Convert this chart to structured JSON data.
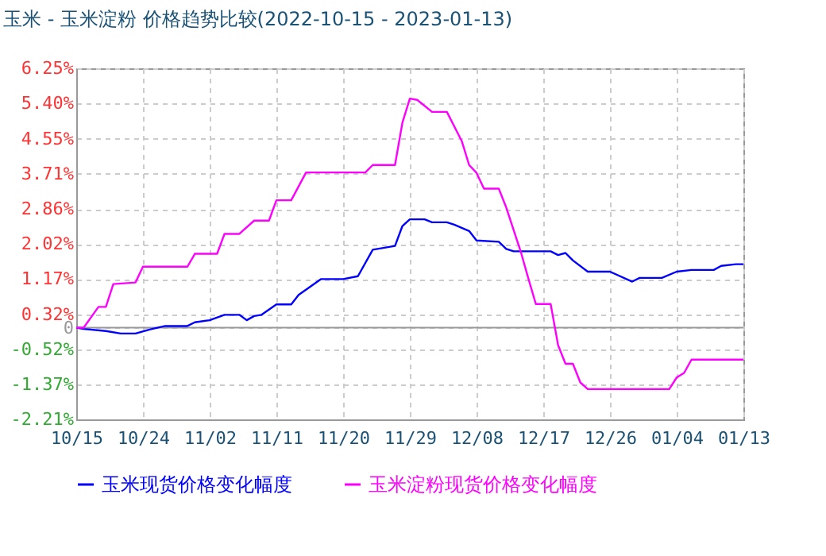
{
  "chart_data": {
    "type": "line",
    "title": "玉米 - 玉米淀粉 价格趋势比较(2022-10-15 - 2023-01-13)",
    "xlim": [
      "2022-10-15",
      "2023-01-13"
    ],
    "xticks": [
      {
        "value": "2022-10-15",
        "label": "10/15"
      },
      {
        "value": "2022-10-24",
        "label": "10/24"
      },
      {
        "value": "2022-11-02",
        "label": "11/02"
      },
      {
        "value": "2022-11-11",
        "label": "11/11"
      },
      {
        "value": "2022-11-20",
        "label": "11/20"
      },
      {
        "value": "2022-11-29",
        "label": "11/29"
      },
      {
        "value": "2022-12-08",
        "label": "12/08"
      },
      {
        "value": "2022-12-17",
        "label": "12/17"
      },
      {
        "value": "2022-12-26",
        "label": "12/26"
      },
      {
        "value": "2023-01-04",
        "label": "01/04"
      },
      {
        "value": "2023-01-13",
        "label": "01/13"
      }
    ],
    "ylim": [
      -2.21,
      6.25
    ],
    "yticks": [
      {
        "value": 6.25,
        "label": "6.25%"
      },
      {
        "value": 5.4,
        "label": "5.40%"
      },
      {
        "value": 4.55,
        "label": "4.55%"
      },
      {
        "value": 3.71,
        "label": "3.71%"
      },
      {
        "value": 2.86,
        "label": "2.86%"
      },
      {
        "value": 2.02,
        "label": "2.02%"
      },
      {
        "value": 1.17,
        "label": "1.17%"
      },
      {
        "value": 0.32,
        "label": "0.32%"
      },
      0,
      {
        "value": -0.52,
        "label": "-0.52%"
      },
      {
        "value": -1.37,
        "label": "-1.37%"
      },
      {
        "value": -2.21,
        "label": "-2.21%"
      }
    ],
    "grid": true,
    "legend": "bottom",
    "marker": "none",
    "line_style": "solid",
    "ref_lines": [
      {
        "axis": "y",
        "value": 0,
        "color": "#999999"
      }
    ],
    "series": [
      {
        "name": "玉米现货价格变化幅度",
        "color": "#0000ff",
        "x": [
          "2022-10-15",
          "2022-10-16",
          "2022-10-19",
          "2022-10-21",
          "2022-10-23",
          "2022-10-25",
          "2022-10-27",
          "2022-10-30",
          "2022-10-31",
          "2022-11-02",
          "2022-11-04",
          "2022-11-06",
          "2022-11-07",
          "2022-11-08",
          "2022-11-09",
          "2022-11-11",
          "2022-11-13",
          "2022-11-14",
          "2022-11-17",
          "2022-11-20",
          "2022-11-22",
          "2022-11-24",
          "2022-11-27",
          "2022-11-28",
          "2022-11-29",
          "2022-12-01",
          "2022-12-02",
          "2022-12-04",
          "2022-12-05",
          "2022-12-07",
          "2022-12-08",
          "2022-12-11",
          "2022-12-12",
          "2022-12-13",
          "2022-12-18",
          "2022-12-19",
          "2022-12-20",
          "2022-12-21",
          "2022-12-23",
          "2022-12-26",
          "2022-12-29",
          "2022-12-30",
          "2023-01-02",
          "2023-01-04",
          "2023-01-06",
          "2023-01-09",
          "2023-01-10",
          "2023-01-12",
          "2023-01-13"
        ],
        "values": [
          0,
          -0.03,
          -0.08,
          -0.14,
          -0.14,
          -0.04,
          0.04,
          0.04,
          0.13,
          0.18,
          0.31,
          0.31,
          0.18,
          0.28,
          0.31,
          0.56,
          0.56,
          0.79,
          1.17,
          1.17,
          1.24,
          1.88,
          1.97,
          2.45,
          2.61,
          2.61,
          2.54,
          2.54,
          2.48,
          2.33,
          2.1,
          2.07,
          1.9,
          1.84,
          1.84,
          1.75,
          1.8,
          1.62,
          1.35,
          1.35,
          1.11,
          1.2,
          1.2,
          1.35,
          1.39,
          1.39,
          1.49,
          1.53,
          1.53
        ]
      },
      {
        "name": "玉米淀粉现货价格变化幅度",
        "color": "#ff00ff",
        "x": [
          "2022-10-15",
          "2022-10-16",
          "2022-10-18",
          "2022-10-19",
          "2022-10-20",
          "2022-10-23",
          "2022-10-24",
          "2022-10-30",
          "2022-10-31",
          "2022-11-03",
          "2022-11-04",
          "2022-11-06",
          "2022-11-08",
          "2022-11-10",
          "2022-11-11",
          "2022-11-13",
          "2022-11-15",
          "2022-11-23",
          "2022-11-24",
          "2022-11-27",
          "2022-11-28",
          "2022-11-29",
          "2022-11-30",
          "2022-12-02",
          "2022-12-04",
          "2022-12-06",
          "2022-12-07",
          "2022-12-08",
          "2022-12-09",
          "2022-12-11",
          "2022-12-12",
          "2022-12-14",
          "2022-12-15",
          "2022-12-16",
          "2022-12-18",
          "2022-12-19",
          "2022-12-20",
          "2022-12-21",
          "2022-12-22",
          "2022-12-23",
          "2023-01-03",
          "2023-01-04",
          "2023-01-05",
          "2023-01-06",
          "2023-01-13"
        ],
        "values": [
          0,
          0,
          0.5,
          0.5,
          1.05,
          1.09,
          1.47,
          1.47,
          1.78,
          1.78,
          2.26,
          2.26,
          2.58,
          2.58,
          3.07,
          3.07,
          3.74,
          3.74,
          3.92,
          3.92,
          4.94,
          5.52,
          5.49,
          5.2,
          5.2,
          4.5,
          3.92,
          3.73,
          3.35,
          3.35,
          2.9,
          1.81,
          1.18,
          0.57,
          0.57,
          -0.42,
          -0.87,
          -0.87,
          -1.32,
          -1.48,
          -1.48,
          -1.2,
          -1.09,
          -0.77,
          -0.77
        ]
      }
    ]
  }
}
